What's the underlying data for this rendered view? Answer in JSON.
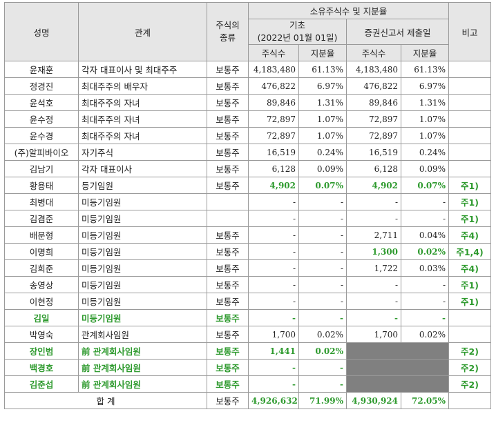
{
  "headers": {
    "name": "성명",
    "relation": "관계",
    "stock_type_l1": "주식의",
    "stock_type_l2": "종류",
    "owned": "소유주식수 및 지분율",
    "base": "기초",
    "base_date": "(2022년 01월 01일)",
    "filing": "증권신고서 제출일",
    "note": "비고",
    "shares": "주식수",
    "ratio": "지분율"
  },
  "rows": [
    {
      "name": "윤재훈",
      "relation": "각자 대표이사 및 최대주주",
      "type": "보통주",
      "s1": "4,183,480",
      "r1": "61.13%",
      "s2": "4,183,480",
      "r2": "61.13%",
      "note": "",
      "hl": ""
    },
    {
      "name": "정경진",
      "relation": "최대주주의 배우자",
      "type": "보통주",
      "s1": "476,822",
      "r1": "6.97%",
      "s2": "476,822",
      "r2": "6.97%",
      "note": "",
      "hl": ""
    },
    {
      "name": "윤석호",
      "relation": "최대주주의 자녀",
      "type": "보통주",
      "s1": "89,846",
      "r1": "1.31%",
      "s2": "89,846",
      "r2": "1.31%",
      "note": "",
      "hl": ""
    },
    {
      "name": "윤수정",
      "relation": "최대주주의 자녀",
      "type": "보통주",
      "s1": "72,897",
      "r1": "1.07%",
      "s2": "72,897",
      "r2": "1.07%",
      "note": "",
      "hl": ""
    },
    {
      "name": "윤수경",
      "relation": "최대주주의 자녀",
      "type": "보통주",
      "s1": "72,897",
      "r1": "1.07%",
      "s2": "72,897",
      "r2": "1.07%",
      "note": "",
      "hl": ""
    },
    {
      "name": "(주)알피바이오",
      "relation": "자기주식",
      "type": "보통주",
      "s1": "16,519",
      "r1": "0.24%",
      "s2": "16,519",
      "r2": "0.24%",
      "note": "",
      "hl": ""
    },
    {
      "name": "김남기",
      "relation": "각자 대표이사",
      "type": "보통주",
      "s1": "6,128",
      "r1": "0.09%",
      "s2": "6,128",
      "r2": "0.09%",
      "note": "",
      "hl": ""
    },
    {
      "name": "황용태",
      "relation": "등기임원",
      "type": "보통주",
      "s1": "4,902",
      "r1": "0.07%",
      "s2": "4,902",
      "r2": "0.07%",
      "note": "주1)",
      "hl": "nums"
    },
    {
      "name": "최병대",
      "relation": "미등기임원",
      "type": "",
      "s1": "-",
      "r1": "-",
      "s2": "-",
      "r2": "-",
      "note": "주1)",
      "hl": ""
    },
    {
      "name": "김겸준",
      "relation": "미등기임원",
      "type": "",
      "s1": "-",
      "r1": "-",
      "s2": "-",
      "r2": "-",
      "note": "주1)",
      "hl": ""
    },
    {
      "name": "배문형",
      "relation": "미등기임원",
      "type": "보통주",
      "s1": "-",
      "r1": "-",
      "s2": "2,711",
      "r2": "0.04%",
      "note": "주4)",
      "hl": ""
    },
    {
      "name": "이명희",
      "relation": "미등기임원",
      "type": "보통주",
      "s1": "-",
      "r1": "-",
      "s2": "1,300",
      "r2": "0.02%",
      "note": "주1,4)",
      "hl": "right"
    },
    {
      "name": "김희준",
      "relation": "미등기임원",
      "type": "보통주",
      "s1": "-",
      "r1": "-",
      "s2": "1,722",
      "r2": "0.03%",
      "note": "주4)",
      "hl": ""
    },
    {
      "name": "송영상",
      "relation": "미등기임원",
      "type": "보통주",
      "s1": "-",
      "r1": "-",
      "s2": "-",
      "r2": "-",
      "note": "주1)",
      "hl": ""
    },
    {
      "name": "이현정",
      "relation": "미등기임원",
      "type": "보통주",
      "s1": "-",
      "r1": "-",
      "s2": "-",
      "r2": "-",
      "note": "주1)",
      "hl": ""
    },
    {
      "name": "김일",
      "relation": "미등기임원",
      "type": "보통주",
      "s1": "-",
      "r1": "-",
      "s2": "-",
      "r2": "-",
      "note": "",
      "hl": "all"
    },
    {
      "name": "박영숙",
      "relation": "관계회사임원",
      "type": "보통주",
      "s1": "1,700",
      "r1": "0.02%",
      "s2": "1,700",
      "r2": "0.02%",
      "note": "",
      "hl": ""
    },
    {
      "name": "장인범",
      "relation": "前 관계회사임원",
      "type": "보통주",
      "s1": "1,441",
      "r1": "0.02%",
      "s2": "",
      "r2": "",
      "note": "주2)",
      "hl": "all",
      "grey": true
    },
    {
      "name": "백경호",
      "relation": "前 관계회사임원",
      "type": "보통주",
      "s1": "-",
      "r1": "-",
      "s2": "",
      "r2": "",
      "note": "주2)",
      "hl": "all",
      "grey": true
    },
    {
      "name": "김준섭",
      "relation": "前 관계회사임원",
      "type": "보통주",
      "s1": "-",
      "r1": "-",
      "s2": "",
      "r2": "",
      "note": "주2)",
      "hl": "all",
      "grey": true
    }
  ],
  "total": {
    "label": "합 계",
    "type": "보통주",
    "s1": "4,926,632",
    "r1": "71.99%",
    "s2": "4,930,924",
    "r2": "72.05%"
  },
  "colors": {
    "highlight": "#2e9a2e",
    "header_bg": "#e6e6e6",
    "masked": "#808080"
  }
}
